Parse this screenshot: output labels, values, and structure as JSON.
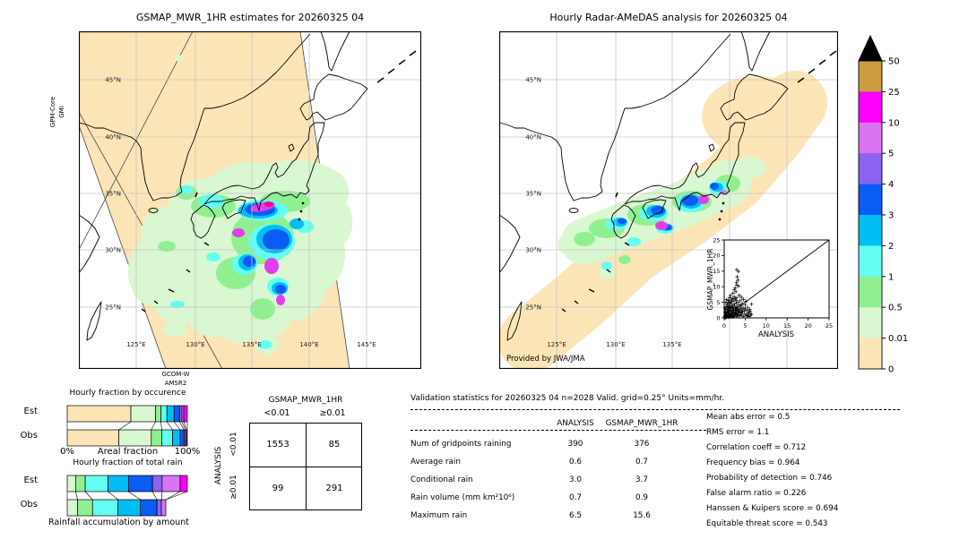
{
  "map_left": {
    "title": "GSMAP_MWR_1HR estimates for 20260325 04",
    "side_label_line1": "GPM-Core",
    "side_label_line2": "GMI",
    "bottom_label_line1": "GCOM-W",
    "bottom_label_line2": "AMSR2",
    "lat_labels": [
      "45°N",
      "40°N",
      "35°N",
      "30°N",
      "25°N"
    ],
    "lon_labels": [
      "125°E",
      "130°E",
      "135°E",
      "140°E",
      "145°E"
    ]
  },
  "map_right": {
    "title": "Hourly Radar-AMeDAS analysis for 20260325 04",
    "credit": "Provided by JWA/JMA",
    "lat_labels": [
      "45°N",
      "40°N",
      "35°N",
      "30°N",
      "25°N"
    ],
    "lon_labels": [
      "125°E",
      "130°E",
      "135°E"
    ]
  },
  "colorbar": {
    "units_implicit": "mm/hr",
    "ticks": [
      "50",
      "25",
      "10",
      "5",
      "4",
      "3",
      "2",
      "1",
      "0.5",
      "0.01",
      "0"
    ],
    "colors_top_to_bottom": [
      "#cc9c40",
      "#fb00fb",
      "#d973f0",
      "#8a63f0",
      "#0a5cf2",
      "#00bdf2",
      "#63fff2",
      "#90f090",
      "#d9f7d0",
      "#fbe5b6"
    ],
    "over_arrow_color": "#000000"
  },
  "chart_data": [
    {
      "id": "occurrence_bars",
      "type": "bar",
      "stacked": true,
      "orientation": "horizontal",
      "title": "Hourly fraction by occurence",
      "categories": [
        "0-0.01",
        "0.01-0.5",
        "0.5-1",
        "1-2",
        "2-3",
        "3-4",
        "4-5",
        "5-10",
        "10-25",
        "25-50"
      ],
      "colors": [
        "#fbe5b6",
        "#d9f7d0",
        "#90f090",
        "#63fff2",
        "#00bdf2",
        "#0a5cf2",
        "#8a63f0",
        "#d973f0",
        "#fb00fb",
        "#cc9c40"
      ],
      "series": [
        {
          "name": "Est",
          "values": [
            0.53,
            0.205,
            0.045,
            0.05,
            0.06,
            0.045,
            0.02,
            0.015,
            0.03,
            0
          ]
        },
        {
          "name": "Obs",
          "values": [
            0.43,
            0.27,
            0.087,
            0.09,
            0.063,
            0.032,
            0.012,
            0.01,
            0.006,
            0
          ]
        }
      ],
      "xlabel_left": "0%",
      "xlabel_center": "Areal fraction",
      "xlabel_right": "100%",
      "xlim": [
        0,
        1
      ]
    },
    {
      "id": "total_rain_bars",
      "type": "bar",
      "stacked": true,
      "orientation": "horizontal",
      "title": "Hourly fraction of total rain",
      "caption": "Rainfall accumulation by amount",
      "categories": [
        "0-0.01",
        "0.01-0.5",
        "0.5-1",
        "1-2",
        "2-3",
        "3-4",
        "4-5",
        "5-10",
        "10-25",
        "25-50"
      ],
      "colors": [
        "#fbe5b6",
        "#d9f7d0",
        "#90f090",
        "#63fff2",
        "#00bdf2",
        "#0a5cf2",
        "#8a63f0",
        "#d973f0",
        "#fb00fb",
        "#cc9c40"
      ],
      "series": [
        {
          "name": "Est",
          "values": [
            0,
            0.07,
            0.08,
            0.19,
            0.17,
            0.2,
            0.08,
            0.15,
            0.06,
            0
          ]
        },
        {
          "name": "Obs",
          "values": [
            0,
            0.087,
            0.124,
            0.212,
            0.187,
            0.137,
            0.037,
            0.037,
            0,
            0
          ]
        }
      ],
      "xlim": [
        0,
        1
      ]
    },
    {
      "id": "contingency_table",
      "type": "table",
      "col_title": "GSMAP_MWR_1HR",
      "row_title": "ANALYSIS",
      "col_labels": [
        "<0.01",
        "≥0.01"
      ],
      "row_labels": [
        "<0.01",
        "≥0.01"
      ],
      "values": [
        [
          "1553",
          "85"
        ],
        [
          "99",
          "291"
        ]
      ]
    },
    {
      "id": "validation_stats",
      "type": "table",
      "title": "Validation statistics for 20260325 04  n=2028 Valid. grid=0.25° Units=mm/hr.",
      "columns": [
        "ANALYSIS",
        "GSMAP_MWR_1HR"
      ],
      "rows": [
        {
          "label": "Num of gridpoints raining",
          "analysis": "390",
          "gsmap": "376"
        },
        {
          "label": "Average rain",
          "analysis": "0.6",
          "gsmap": "0.7"
        },
        {
          "label": "Conditional rain",
          "analysis": "3.0",
          "gsmap": "3.7"
        },
        {
          "label": "Rain volume (mm km²10⁶)",
          "analysis": "0.7",
          "gsmap": "0.9"
        },
        {
          "label": "Maximum rain",
          "analysis": "6.5",
          "gsmap": "15.6"
        }
      ],
      "scores": [
        {
          "label": "Mean abs error",
          "value": "0.5"
        },
        {
          "label": "RMS error",
          "value": "1.1"
        },
        {
          "label": "Correlation coeff",
          "value": "0.712"
        },
        {
          "label": "Frequency bias",
          "value": "0.964"
        },
        {
          "label": "Probability of detection",
          "value": "0.746"
        },
        {
          "label": "False alarm ratio",
          "value": "0.226"
        },
        {
          "label": "Hanssen & Kuipers score",
          "value": "0.694"
        },
        {
          "label": "Equitable threat score",
          "value": "0.543"
        }
      ]
    },
    {
      "id": "scatter_inset",
      "type": "scatter",
      "xlabel": "ANALYSIS",
      "ylabel": "GSMAP_MWR_1HR",
      "xlim": [
        0,
        25
      ],
      "ylim": [
        0,
        25
      ],
      "ticks": [
        0,
        5,
        10,
        15,
        20,
        25
      ],
      "marker": "+",
      "identity_line": true,
      "points": [
        [
          0.1,
          0.1
        ],
        [
          0.2,
          0.3
        ],
        [
          0.3,
          0.1
        ],
        [
          0.2,
          0.6
        ],
        [
          0.4,
          0.2
        ],
        [
          0.5,
          0.5
        ],
        [
          0.3,
          0.9
        ],
        [
          0.6,
          0.3
        ],
        [
          0.7,
          0.7
        ],
        [
          0.5,
          1.1
        ],
        [
          0.8,
          0.4
        ],
        [
          0.9,
          0.9
        ],
        [
          0.7,
          1.4
        ],
        [
          1,
          0.2
        ],
        [
          1.1,
          0.6
        ],
        [
          0.9,
          1.8
        ],
        [
          1.2,
          1
        ],
        [
          1.3,
          0.3
        ],
        [
          1.1,
          2.2
        ],
        [
          1.4,
          0.7
        ],
        [
          1.5,
          1.3
        ],
        [
          1.3,
          2.6
        ],
        [
          1.6,
          0.4
        ],
        [
          1.7,
          1
        ],
        [
          1.5,
          3
        ],
        [
          1.8,
          1.6
        ],
        [
          1.9,
          0.6
        ],
        [
          1.7,
          3.5
        ],
        [
          2,
          1.2
        ],
        [
          2.1,
          0.3
        ],
        [
          1.9,
          2.4
        ],
        [
          2.2,
          1.8
        ],
        [
          2.3,
          0.8
        ],
        [
          2.1,
          3.9
        ],
        [
          2.4,
          1.4
        ],
        [
          2.5,
          0.5
        ],
        [
          2.3,
          2.9
        ],
        [
          2.6,
          2
        ],
        [
          2.7,
          1.1
        ],
        [
          2.5,
          4.4
        ],
        [
          2.8,
          1.6
        ],
        [
          2.9,
          0.7
        ],
        [
          2.7,
          3.3
        ],
        [
          3,
          2.3
        ],
        [
          3.1,
          1.2
        ],
        [
          2.9,
          4.8
        ],
        [
          3.2,
          2.8
        ],
        [
          3.3,
          1.7
        ],
        [
          3.1,
          3.7
        ],
        [
          3.4,
          2.1
        ],
        [
          0.4,
          1.5
        ],
        [
          0.6,
          2.1
        ],
        [
          0.8,
          2.7
        ],
        [
          1,
          3.3
        ],
        [
          1.2,
          4
        ],
        [
          0.3,
          2.8
        ],
        [
          0.5,
          3.6
        ],
        [
          0.7,
          4.3
        ],
        [
          1.4,
          4.7
        ],
        [
          1.6,
          5.2
        ],
        [
          0.9,
          5
        ],
        [
          1.1,
          5.6
        ],
        [
          1.8,
          5.8
        ],
        [
          2,
          6.2
        ],
        [
          1.3,
          6.5
        ],
        [
          2.2,
          5.4
        ],
        [
          2.4,
          6.8
        ],
        [
          1.5,
          7.2
        ],
        [
          2.6,
          6.1
        ],
        [
          0.2,
          1.9
        ],
        [
          0.4,
          4.9
        ],
        [
          0.6,
          5.9
        ],
        [
          2.8,
          5.7
        ],
        [
          3,
          6.4
        ],
        [
          3.2,
          5.1
        ],
        [
          3.6,
          4.2
        ],
        [
          3.8,
          5.5
        ],
        [
          4,
          3.8
        ],
        [
          4.2,
          2.5
        ],
        [
          3.7,
          1.9
        ],
        [
          4.5,
          3.2
        ],
        [
          0.2,
          3.2
        ],
        [
          0.4,
          0.8
        ],
        [
          0.6,
          1.7
        ],
        [
          0.8,
          3.1
        ],
        [
          1,
          2.4
        ],
        [
          1.2,
          1.5
        ],
        [
          1.4,
          3.6
        ],
        [
          1.6,
          2.1
        ],
        [
          1.8,
          4.5
        ],
        [
          2,
          3.3
        ],
        [
          2.2,
          2.6
        ],
        [
          2.4,
          3.8
        ],
        [
          2.6,
          1.4
        ],
        [
          2.8,
          2.5
        ],
        [
          3,
          3.1
        ],
        [
          3.2,
          0.5
        ],
        [
          3.4,
          1
        ],
        [
          3.6,
          2.7
        ],
        [
          3.8,
          0.7
        ],
        [
          4,
          1.6
        ],
        [
          4.2,
          0.9
        ],
        [
          4.4,
          1.8
        ],
        [
          4.6,
          0.4
        ],
        [
          4.8,
          2.2
        ],
        [
          5,
          2.9
        ],
        [
          5.2,
          1.1
        ],
        [
          5.4,
          2.4
        ],
        [
          5.6,
          0.8
        ],
        [
          5.8,
          1.5
        ],
        [
          6,
          0.4
        ],
        [
          6.2,
          2.1
        ],
        [
          6.5,
          1.2
        ],
        [
          3,
          15.5
        ],
        [
          3.4,
          14.9
        ],
        [
          3.1,
          13.2
        ],
        [
          3.3,
          12.1
        ],
        [
          2.9,
          11.4
        ],
        [
          3,
          10.6
        ],
        [
          3.4,
          10.2
        ],
        [
          2.6,
          9.6
        ],
        [
          2.4,
          9
        ],
        [
          2.8,
          8.4
        ],
        [
          2.1,
          7.9
        ],
        [
          3.6,
          7.2
        ],
        [
          4.1,
          6.6
        ],
        [
          4.6,
          5.9
        ],
        [
          5.2,
          5.3
        ],
        [
          4.3,
          4.6
        ],
        [
          5,
          4.1
        ],
        [
          5.6,
          3.4
        ],
        [
          6.1,
          2.7
        ],
        [
          6.5,
          4.4
        ],
        [
          5.9,
          1.8
        ],
        [
          6.3,
          0.9
        ],
        [
          4.9,
          1.2
        ],
        [
          5.4,
          0.6
        ],
        [
          4.4,
          2.2
        ],
        [
          3.9,
          3.1
        ]
      ]
    }
  ]
}
